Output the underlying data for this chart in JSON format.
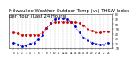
{
  "title": "Milwaukee Weather Outdoor Temp (vs) THSW Index per Hour (Last 24 Hours)",
  "hours": [
    0,
    1,
    2,
    3,
    4,
    5,
    6,
    7,
    8,
    9,
    10,
    11,
    12,
    13,
    14,
    15,
    16,
    17,
    18,
    19,
    20,
    21,
    22,
    23
  ],
  "temp": [
    42,
    41,
    38,
    38,
    38,
    38,
    38,
    42,
    52,
    60,
    64,
    65,
    65,
    65,
    65,
    64,
    62,
    58,
    50,
    46,
    42,
    42,
    44,
    44
  ],
  "thsw": [
    22,
    18,
    14,
    16,
    20,
    22,
    28,
    38,
    52,
    62,
    70,
    72,
    72,
    70,
    65,
    55,
    42,
    32,
    26,
    22,
    20,
    18,
    18,
    22
  ],
  "temp_color": "#cc0000",
  "thsw_color": "#0000cc",
  "background": "#ffffff",
  "ylim": [
    10,
    80
  ],
  "ytick_labels": [
    "80",
    "70",
    "60",
    "50",
    "40",
    "30",
    "20",
    "10"
  ],
  "ytick_values": [
    80,
    70,
    60,
    50,
    40,
    30,
    20,
    10
  ],
  "grid_color": "#aaaaaa",
  "title_fontsize": 3.8,
  "marker_size": 2.0,
  "line_width": 0.6
}
